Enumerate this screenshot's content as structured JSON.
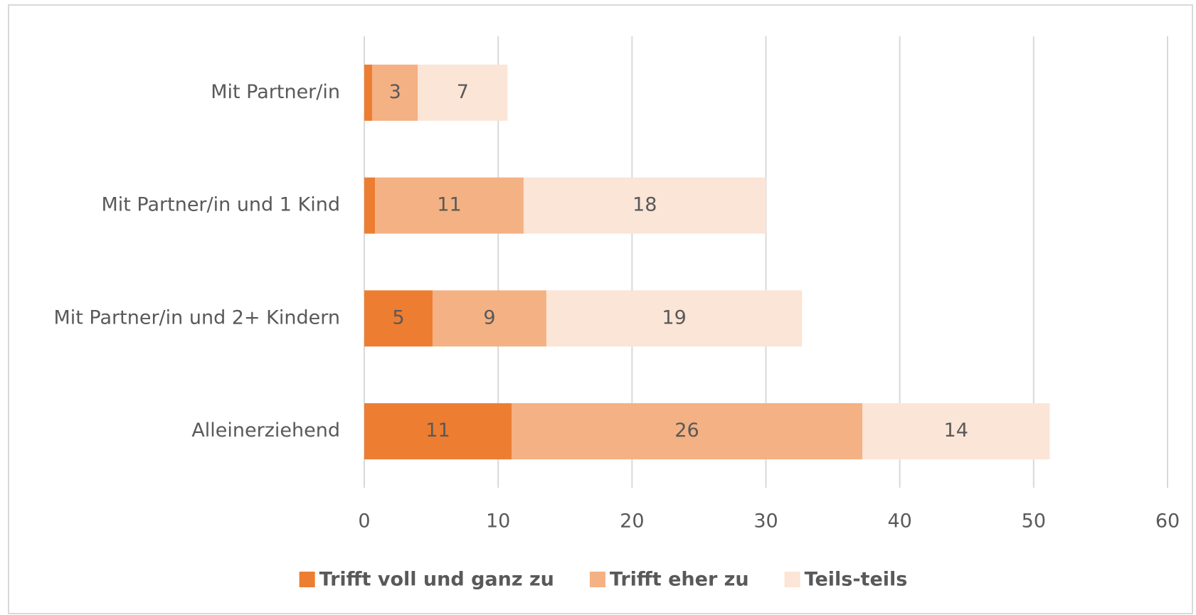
{
  "chart_data": {
    "type": "stacked_barh",
    "categories": [
      "Mit Partner/in",
      "Mit Partner/in und 1 Kind",
      "Mit Partner/in und 2+ Kindern",
      "Alleinerziehend"
    ],
    "series": [
      {
        "name": "Trifft voll und ganz zu",
        "color": "#ed7d31",
        "values": [
          0.6,
          0.8,
          5.1,
          11
        ],
        "value_labels": [
          null,
          null,
          "5",
          "11"
        ]
      },
      {
        "name": "Trifft eher zu",
        "color": "#f4b183",
        "values": [
          3.4,
          11.1,
          8.5,
          26.2
        ],
        "value_labels": [
          "3",
          "11",
          "9",
          "26"
        ]
      },
      {
        "name": "Teils-teils",
        "color": "#fbe5d6",
        "values": [
          6.7,
          18.1,
          19.1,
          14
        ],
        "value_labels": [
          "7",
          "18",
          "19",
          "14"
        ]
      }
    ],
    "xlim": [
      0,
      60
    ],
    "xticks": [
      0,
      10,
      20,
      30,
      40,
      50,
      60
    ],
    "grid": true,
    "legend": "bottom"
  }
}
